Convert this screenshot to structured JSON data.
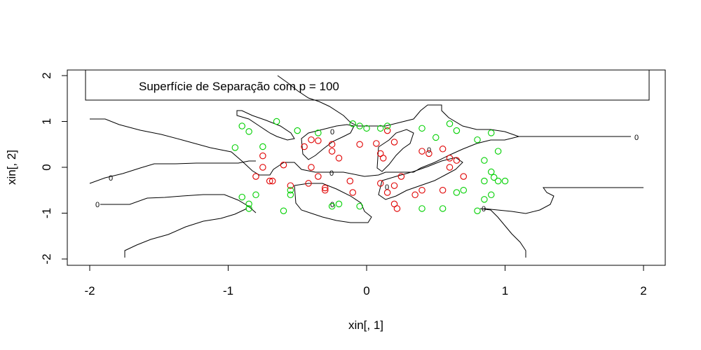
{
  "chart_data": {
    "type": "scatter",
    "title": "",
    "xlabel": "xin[, 1]",
    "ylabel": "xin[, 2]",
    "xlim": [
      -2.1,
      2.15
    ],
    "ylim": [
      -2.1,
      2.15
    ],
    "xticks": [
      -2,
      -1,
      0,
      1,
      2
    ],
    "xtick_labels": [
      "-2",
      "-1",
      "0",
      "1",
      "2"
    ],
    "yticks": [
      -2,
      -1,
      0,
      1,
      2
    ],
    "ytick_labels": [
      "-2",
      "-1",
      "0",
      "1",
      "2"
    ],
    "grid": false,
    "legend": {
      "text": "Superfície de Separação com p = 100",
      "placement": "top"
    },
    "colors": {
      "class_1": "#e00000",
      "class_2": "#00d000",
      "contour": "#000000"
    },
    "series": [
      {
        "values": [
          [
            -0.75,
            0.25
          ],
          [
            -0.68,
            -0.3
          ],
          [
            -0.6,
            0.05
          ],
          [
            -0.45,
            0.45
          ],
          [
            -0.4,
            0.6
          ],
          [
            -0.35,
            0.58
          ],
          [
            -0.4,
            0.0
          ],
          [
            -0.35,
            -0.2
          ],
          [
            -0.3,
            -0.45
          ],
          [
            -0.25,
            0.5
          ],
          [
            -0.25,
            0.35
          ],
          [
            -0.2,
            0.2
          ],
          [
            -0.1,
            -0.55
          ],
          [
            -0.05,
            0.5
          ],
          [
            0.1,
            0.3
          ],
          [
            0.12,
            0.2
          ],
          [
            0.1,
            -0.35
          ],
          [
            0.2,
            -0.4
          ],
          [
            0.15,
            0.8
          ],
          [
            0.2,
            0.55
          ],
          [
            0.15,
            -0.55
          ],
          [
            0.25,
            -0.2
          ],
          [
            0.4,
            0.35
          ],
          [
            0.45,
            0.3
          ],
          [
            0.55,
            0.4
          ],
          [
            0.6,
            0.0
          ],
          [
            0.6,
            0.2
          ],
          [
            0.65,
            0.15
          ],
          [
            0.7,
            -0.2
          ],
          [
            0.55,
            -0.5
          ],
          [
            0.4,
            -0.5
          ],
          [
            0.35,
            -0.6
          ],
          [
            0.2,
            -0.8
          ],
          [
            -0.3,
            -0.5
          ],
          [
            -0.42,
            -0.35
          ],
          [
            -0.55,
            -0.4
          ],
          [
            -0.7,
            -0.3
          ],
          [
            -0.8,
            -0.2
          ],
          [
            -0.75,
            0.0
          ],
          [
            -0.12,
            -0.3
          ],
          [
            0.07,
            0.52
          ],
          [
            0.22,
            -0.9
          ]
        ]
      },
      {
        "values": [
          [
            -0.9,
            0.9
          ],
          [
            -0.85,
            0.78
          ],
          [
            -0.75,
            0.45
          ],
          [
            -0.95,
            0.43
          ],
          [
            -0.65,
            1.0
          ],
          [
            -0.5,
            0.8
          ],
          [
            -0.35,
            0.75
          ],
          [
            -0.55,
            -0.5
          ],
          [
            -0.55,
            -0.6
          ],
          [
            -0.6,
            -0.95
          ],
          [
            -0.8,
            -0.6
          ],
          [
            -0.9,
            -0.65
          ],
          [
            -0.85,
            -0.8
          ],
          [
            -0.85,
            -0.9
          ],
          [
            -0.25,
            -0.85
          ],
          [
            -0.2,
            -0.8
          ],
          [
            -0.05,
            -0.85
          ],
          [
            -0.1,
            0.95
          ],
          [
            -0.05,
            0.9
          ],
          [
            0.0,
            0.85
          ],
          [
            0.1,
            0.85
          ],
          [
            0.15,
            0.9
          ],
          [
            0.4,
            0.85
          ],
          [
            0.5,
            0.65
          ],
          [
            0.6,
            0.95
          ],
          [
            0.65,
            0.8
          ],
          [
            0.8,
            0.6
          ],
          [
            0.9,
            0.75
          ],
          [
            0.95,
            0.35
          ],
          [
            0.85,
            0.15
          ],
          [
            0.9,
            -0.1
          ],
          [
            0.95,
            -0.3
          ],
          [
            1.0,
            -0.3
          ],
          [
            0.9,
            -0.6
          ],
          [
            0.85,
            -0.3
          ],
          [
            0.8,
            -0.95
          ],
          [
            0.7,
            -0.5
          ],
          [
            0.65,
            -0.55
          ],
          [
            0.55,
            -0.9
          ],
          [
            0.4,
            -0.9
          ],
          [
            0.85,
            -0.7
          ],
          [
            0.92,
            -0.22
          ]
        ]
      }
    ],
    "contour_label": "0"
  }
}
